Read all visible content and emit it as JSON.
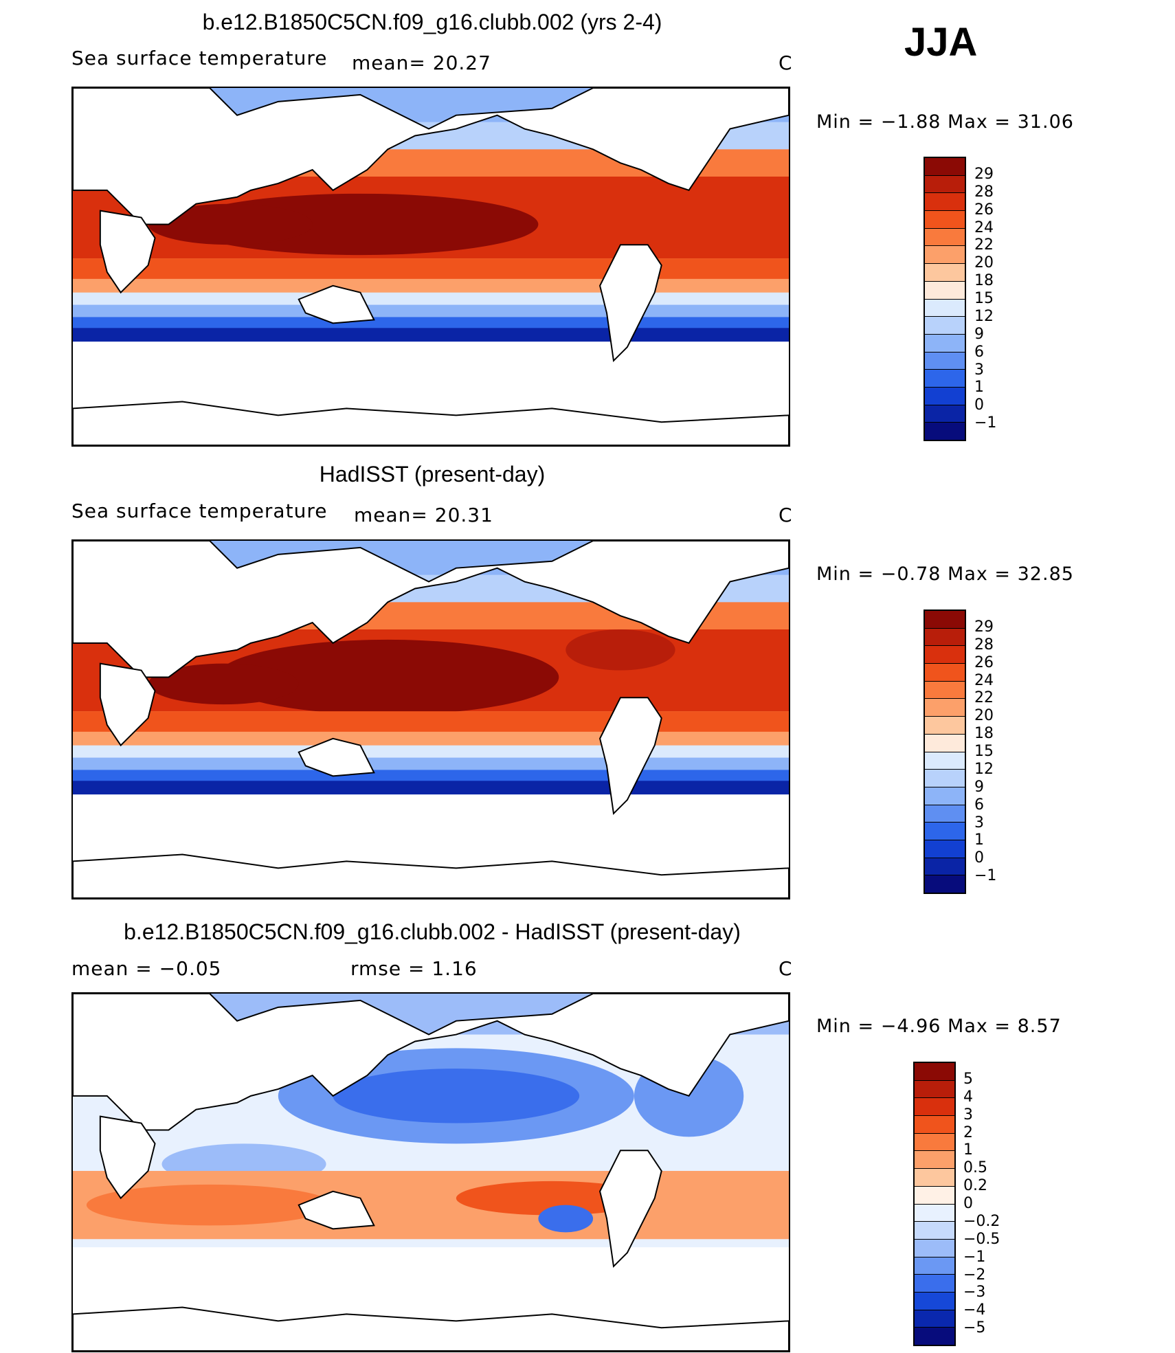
{
  "season": "JJA",
  "panels": [
    {
      "title": "b.e12.B1850C5CN.f09_g16.clubb.002 (yrs 2-4)",
      "left_label": "Sea surface temperature",
      "center_label": "mean=   20.27",
      "units": "C",
      "min_label": "Min  =   −1.88  Max  =    31.06",
      "colorbar_labels": [
        "29",
        "28",
        "26",
        "24",
        "22",
        "20",
        "18",
        "15",
        "12",
        "9",
        "6",
        "3",
        "1",
        "0",
        "−1"
      ],
      "colors": [
        "#8b0a05",
        "#b81e0a",
        "#d9300d",
        "#f0541c",
        "#f97a3d",
        "#fca06a",
        "#fdc79e",
        "#feeadb",
        "#dbeafd",
        "#b8d2fb",
        "#8db4f8",
        "#5f8ff2",
        "#2d66ea",
        "#1240d2",
        "#0a24a6",
        "#070c7c"
      ]
    },
    {
      "title": "HadISST (present-day)",
      "left_label": "Sea surface temperature",
      "center_label": "mean=   20.31",
      "units": "C",
      "min_label": "Min  =   −0.78  Max  =    32.85",
      "colorbar_labels": [
        "29",
        "28",
        "26",
        "24",
        "22",
        "20",
        "18",
        "15",
        "12",
        "9",
        "6",
        "3",
        "1",
        "0",
        "−1"
      ],
      "colors": [
        "#8b0a05",
        "#b81e0a",
        "#d9300d",
        "#f0541c",
        "#f97a3d",
        "#fca06a",
        "#fdc79e",
        "#feeadb",
        "#dbeafd",
        "#b8d2fb",
        "#8db4f8",
        "#5f8ff2",
        "#2d66ea",
        "#1240d2",
        "#0a24a6",
        "#070c7c"
      ]
    },
    {
      "title": "b.e12.B1850C5CN.f09_g16.clubb.002 - HadISST (present-day)",
      "left_label": "mean  =   −0.05",
      "center_label": "rmse  =     1.16",
      "units": "C",
      "min_label": "Min  =   −4.96  Max  =     8.57",
      "colorbar_labels": [
        "5",
        "4",
        "3",
        "2",
        "1",
        "0.5",
        "0.2",
        "0",
        "−0.2",
        "−0.5",
        "−1",
        "−2",
        "−3",
        "−4",
        "−5"
      ],
      "colors": [
        "#8b0a05",
        "#b81e0a",
        "#d9300d",
        "#f0541c",
        "#f97a3d",
        "#fca06a",
        "#fdc79e",
        "#fff1e6",
        "#e8f1fe",
        "#c6dafc",
        "#9cbcf9",
        "#6b98f3",
        "#3a6eec",
        "#1648d8",
        "#0a28ae",
        "#070c7c"
      ]
    }
  ]
}
